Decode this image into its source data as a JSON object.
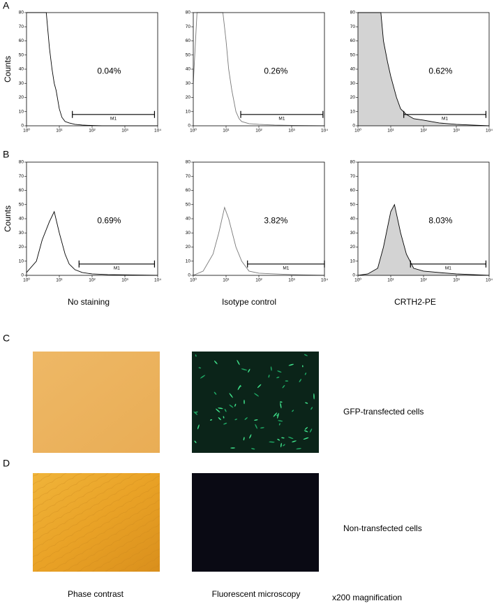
{
  "panel_labels": [
    "A",
    "B",
    "C",
    "D"
  ],
  "column_labels": [
    "No staining",
    "Isotype control",
    "CRTH2-PE"
  ],
  "images": {
    "columns": [
      "Phase contrast",
      "Fluorescent microscopy"
    ],
    "rows": [
      "GFP-transfected cells",
      "Non-transfected cells"
    ],
    "magnification": "x200 magnification"
  },
  "chart_data": [
    {
      "type": "line",
      "ylabel": "Counts",
      "xscale": "log",
      "xlim": [
        1,
        10000
      ],
      "ylim": [
        0,
        80
      ],
      "xticks": [
        {
          "value": 1,
          "label": "10⁰"
        },
        {
          "value": 10,
          "label": "10¹"
        },
        {
          "value": 100,
          "label": "10²"
        },
        {
          "value": 1000,
          "label": "10³"
        },
        {
          "value": 10000,
          "label": "10⁴"
        }
      ],
      "yticks": [
        0,
        10,
        20,
        30,
        40,
        50,
        60,
        70,
        80
      ],
      "x": [
        1,
        4,
        5,
        6,
        7,
        8,
        10,
        12,
        15,
        20,
        30,
        50,
        100,
        200,
        1000,
        10000
      ],
      "series": [
        {
          "color": "#000000",
          "values": [
            80,
            80,
            55,
            40,
            30,
            25,
            12,
            6,
            3,
            2,
            1,
            0.5,
            0.2,
            0,
            0,
            0
          ]
        }
      ],
      "gate": {
        "label": "M1",
        "range": [
          25,
          8000
        ]
      },
      "annotation": "0.04%"
    },
    {
      "type": "line",
      "xscale": "log",
      "xlim": [
        1,
        10000
      ],
      "ylim": [
        0,
        80
      ],
      "xticks": [
        {
          "value": 1,
          "label": "10⁰"
        },
        {
          "value": 10,
          "label": "10¹"
        },
        {
          "value": 100,
          "label": "10²"
        },
        {
          "value": 1000,
          "label": "10³"
        },
        {
          "value": 10000,
          "label": "10⁴"
        }
      ],
      "yticks": [
        0,
        10,
        20,
        30,
        40,
        50,
        60,
        70,
        80
      ],
      "x": [
        1,
        1.3,
        8,
        10,
        12,
        15,
        20,
        25,
        30,
        50,
        100,
        300,
        1000,
        10000
      ],
      "series": [
        {
          "color": "#777777",
          "values": [
            30,
            80,
            80,
            60,
            40,
            25,
            10,
            5,
            3,
            1.5,
            1,
            0.5,
            0.3,
            0
          ]
        }
      ],
      "gate": {
        "label": "M1",
        "range": [
          28,
          9000
        ]
      },
      "annotation": "0.26%"
    },
    {
      "type": "line",
      "xscale": "log",
      "xlim": [
        1,
        10000
      ],
      "ylim": [
        0,
        80
      ],
      "xticks": [
        {
          "value": 1,
          "label": "10⁰"
        },
        {
          "value": 10,
          "label": "10¹"
        },
        {
          "value": 100,
          "label": "10²"
        },
        {
          "value": 1000,
          "label": "10³"
        },
        {
          "value": 10000,
          "label": "10⁴"
        }
      ],
      "yticks": [
        0,
        10,
        20,
        30,
        40,
        50,
        60,
        70,
        80
      ],
      "x": [
        1,
        5,
        6,
        8,
        10,
        15,
        20,
        30,
        50,
        100,
        300,
        1000,
        3000,
        10000
      ],
      "series": [
        {
          "color": "#000000",
          "fill": "#d3d3d3",
          "values": [
            80,
            80,
            60,
            45,
            35,
            20,
            12,
            8,
            5,
            4,
            2,
            1,
            0.5,
            0
          ]
        }
      ],
      "gate": {
        "label": "M1",
        "range": [
          25,
          8000
        ]
      },
      "annotation": "0.62%"
    },
    {
      "type": "line",
      "ylabel": "Counts",
      "xscale": "log",
      "xlim": [
        1,
        10000
      ],
      "ylim": [
        0,
        80
      ],
      "xticks": [
        {
          "value": 1,
          "label": "10⁰"
        },
        {
          "value": 10,
          "label": "10¹"
        },
        {
          "value": 100,
          "label": "10²"
        },
        {
          "value": 1000,
          "label": "10³"
        },
        {
          "value": 10000,
          "label": "10⁴"
        }
      ],
      "yticks": [
        0,
        10,
        20,
        30,
        40,
        50,
        60,
        70,
        80
      ],
      "x": [
        1,
        2,
        3,
        5,
        7,
        10,
        15,
        20,
        30,
        50,
        100,
        300,
        10000
      ],
      "series": [
        {
          "color": "#000000",
          "values": [
            2,
            10,
            25,
            38,
            45,
            30,
            15,
            8,
            4,
            2,
            1,
            0.5,
            0
          ]
        }
      ],
      "gate": {
        "label": "M1",
        "range": [
          40,
          8000
        ]
      },
      "annotation": "0.69%"
    },
    {
      "type": "line",
      "xscale": "log",
      "xlim": [
        1,
        10000
      ],
      "ylim": [
        0,
        80
      ],
      "xticks": [
        {
          "value": 1,
          "label": "10⁰"
        },
        {
          "value": 10,
          "label": "10¹"
        },
        {
          "value": 100,
          "label": "10²"
        },
        {
          "value": 1000,
          "label": "10³"
        },
        {
          "value": 10000,
          "label": "10⁴"
        }
      ],
      "yticks": [
        0,
        10,
        20,
        30,
        40,
        50,
        60,
        70,
        80
      ],
      "x": [
        1,
        2,
        4,
        6,
        9,
        12,
        20,
        30,
        50,
        100,
        300,
        1000,
        10000
      ],
      "series": [
        {
          "color": "#777777",
          "values": [
            0,
            3,
            15,
            30,
            48,
            40,
            20,
            10,
            3,
            1.5,
            1,
            0.5,
            0
          ]
        }
      ],
      "gate": {
        "label": "M1",
        "range": [
          45,
          10000
        ]
      },
      "annotation": "3.82%"
    },
    {
      "type": "line",
      "xscale": "log",
      "xlim": [
        1,
        10000
      ],
      "ylim": [
        0,
        80
      ],
      "xticks": [
        {
          "value": 1,
          "label": "10⁰"
        },
        {
          "value": 10,
          "label": "10¹"
        },
        {
          "value": 100,
          "label": "10²"
        },
        {
          "value": 1000,
          "label": "10³"
        },
        {
          "value": 10000,
          "label": "10⁴"
        }
      ],
      "yticks": [
        0,
        10,
        20,
        30,
        40,
        50,
        60,
        70,
        80
      ],
      "x": [
        1,
        2,
        4,
        6,
        10,
        13,
        20,
        30,
        50,
        100,
        300,
        1000,
        10000
      ],
      "series": [
        {
          "color": "#000000",
          "fill": "#d3d3d3",
          "values": [
            0,
            1,
            5,
            20,
            45,
            50,
            30,
            15,
            5,
            3,
            2,
            1,
            0
          ]
        }
      ],
      "gate": {
        "label": "M1",
        "range": [
          40,
          8000
        ]
      },
      "annotation": "8.03%"
    }
  ]
}
